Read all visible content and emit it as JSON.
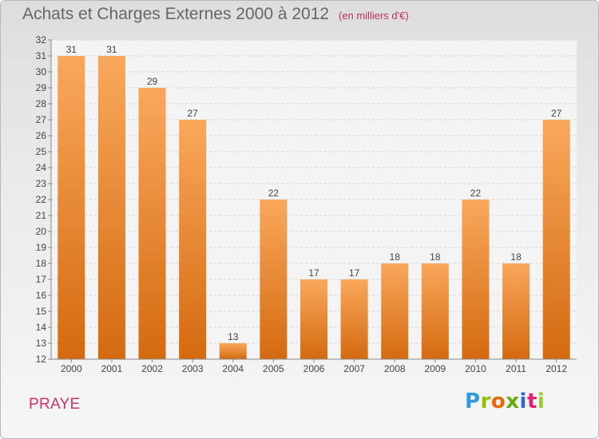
{
  "header": {
    "title": "Achats et Charges Externes 2000 à 2012",
    "subtitle": "(en milliers d'€)"
  },
  "footer": {
    "commune": "PRAYE",
    "logo_text": "Proxiti",
    "logo_colors": [
      "#3399dd",
      "#99bb00",
      "#ee6600",
      "#66aa11",
      "#3366cc",
      "#dd2277",
      "#99cc22"
    ]
  },
  "chart_data": {
    "type": "bar",
    "title": "Achats et Charges Externes 2000 à 2012",
    "subtitle": "(en milliers d'€)",
    "categories": [
      "2000",
      "2001",
      "2002",
      "2003",
      "2004",
      "2005",
      "2006",
      "2007",
      "2008",
      "2009",
      "2010",
      "2011",
      "2012"
    ],
    "values": [
      31,
      31,
      29,
      27,
      13,
      22,
      17,
      17,
      18,
      18,
      22,
      18,
      27
    ],
    "ylim": [
      12,
      32
    ],
    "yticks": [
      12,
      13,
      14,
      15,
      16,
      17,
      18,
      19,
      20,
      21,
      22,
      23,
      24,
      25,
      26,
      27,
      28,
      29,
      30,
      31,
      32
    ],
    "grid": true,
    "data_labels": true,
    "bar_color": "#f08a28"
  }
}
